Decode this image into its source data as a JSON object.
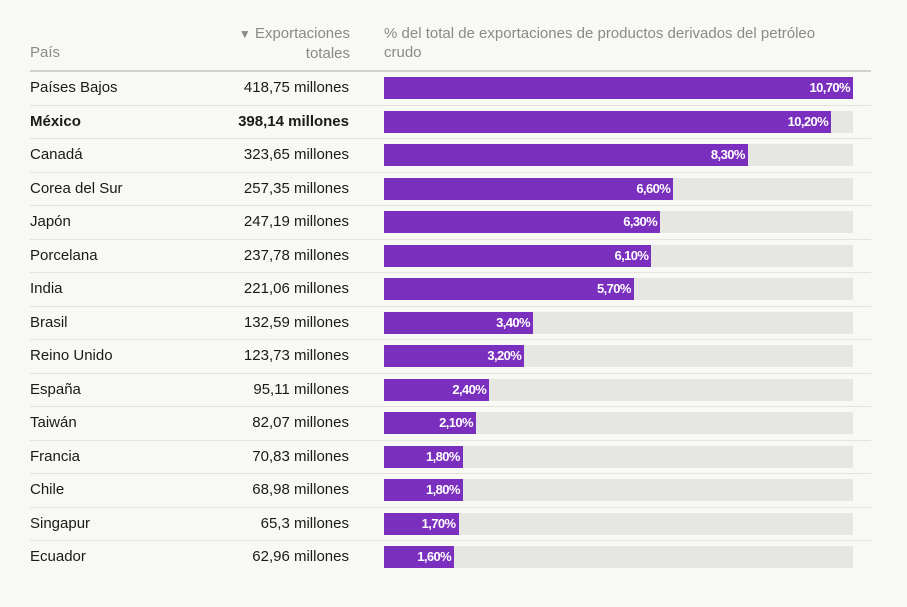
{
  "table": {
    "sort_marker": "▼",
    "headers": [
      "País",
      "Exportaciones totales",
      "% del total de exportaciones de productos derivados del petróleo crudo"
    ],
    "bar_color": "#7b2fbe",
    "rows": [
      {
        "country": "Países Bajos",
        "exports": "418,75 millones",
        "share": 10.7,
        "share_label": "10,70%"
      },
      {
        "country": "México",
        "exports": "398,14 millones",
        "share": 10.2,
        "share_label": "10,20%",
        "bold": true
      },
      {
        "country": "Canadá",
        "exports": "323,65 millones",
        "share": 8.3,
        "share_label": "8,30%"
      },
      {
        "country": "Corea del Sur",
        "exports": "257,35 millones",
        "share": 6.6,
        "share_label": "6,60%"
      },
      {
        "country": "Japón",
        "exports": "247,19 millones",
        "share": 6.3,
        "share_label": "6,30%"
      },
      {
        "country": "Porcelana",
        "exports": "237,78 millones",
        "share": 6.1,
        "share_label": "6,10%"
      },
      {
        "country": "India",
        "exports": "221,06 millones",
        "share": 5.7,
        "share_label": "5,70%"
      },
      {
        "country": "Brasil",
        "exports": "132,59 millones",
        "share": 3.4,
        "share_label": "3,40%"
      },
      {
        "country": "Reino Unido",
        "exports": "123,73 millones",
        "share": 3.2,
        "share_label": "3,20%"
      },
      {
        "country": "España",
        "exports": "95,11 millones",
        "share": 2.4,
        "share_label": "2,40%"
      },
      {
        "country": "Taiwán",
        "exports": "82,07 millones",
        "share": 2.1,
        "share_label": "2,10%"
      },
      {
        "country": "Francia",
        "exports": "70,83 millones",
        "share": 1.8,
        "share_label": "1,80%"
      },
      {
        "country": "Chile",
        "exports": "68,98 millones",
        "share": 1.8,
        "share_label": "1,80%"
      },
      {
        "country": "Singapur",
        "exports": "65,3 millones",
        "share": 1.7,
        "share_label": "1,70%"
      },
      {
        "country": "Ecuador",
        "exports": "62,96 millones",
        "share": 1.6,
        "share_label": "1,60%"
      }
    ]
  }
}
